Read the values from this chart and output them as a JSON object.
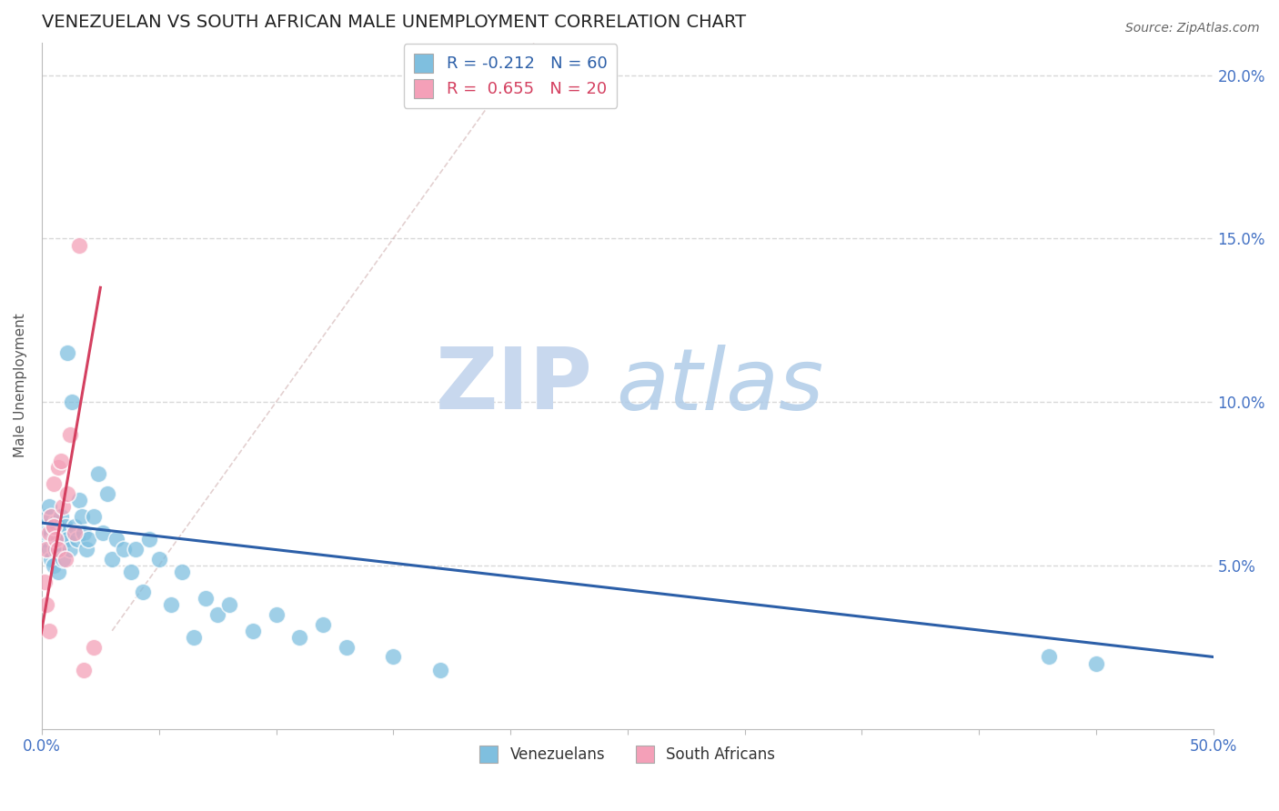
{
  "title": "VENEZUELAN VS SOUTH AFRICAN MALE UNEMPLOYMENT CORRELATION CHART",
  "source": "Source: ZipAtlas.com",
  "ylabel": "Male Unemployment",
  "xlim": [
    0.0,
    0.5
  ],
  "ylim": [
    0.0,
    0.21
  ],
  "xticks": [
    0.0,
    0.05,
    0.1,
    0.15,
    0.2,
    0.25,
    0.3,
    0.35,
    0.4,
    0.45,
    0.5
  ],
  "yticks": [
    0.0,
    0.05,
    0.1,
    0.15,
    0.2
  ],
  "legend_blue_label": "R = -0.212   N = 60",
  "legend_pink_label": "R =  0.655   N = 20",
  "legend_bottom_blue": "Venezuelans",
  "legend_bottom_pink": "South Africans",
  "blue_color": "#7fbfdf",
  "pink_color": "#f4a0b8",
  "blue_line_color": "#2c5fa8",
  "pink_line_color": "#d44060",
  "watermark_zip_color": "#c8d8ee",
  "watermark_atlas_color": "#b0cce8",
  "background_color": "#ffffff",
  "grid_color": "#d8d8d8",
  "venezuelans_x": [
    0.001,
    0.001,
    0.002,
    0.002,
    0.003,
    0.003,
    0.004,
    0.004,
    0.005,
    0.005,
    0.005,
    0.006,
    0.006,
    0.007,
    0.007,
    0.008,
    0.008,
    0.008,
    0.009,
    0.009,
    0.01,
    0.01,
    0.011,
    0.011,
    0.012,
    0.013,
    0.014,
    0.015,
    0.016,
    0.017,
    0.018,
    0.019,
    0.02,
    0.022,
    0.024,
    0.026,
    0.028,
    0.03,
    0.032,
    0.035,
    0.038,
    0.04,
    0.043,
    0.046,
    0.05,
    0.055,
    0.06,
    0.065,
    0.07,
    0.075,
    0.08,
    0.09,
    0.1,
    0.11,
    0.12,
    0.13,
    0.15,
    0.17,
    0.43,
    0.45
  ],
  "venezuelans_y": [
    0.058,
    0.062,
    0.06,
    0.065,
    0.055,
    0.068,
    0.052,
    0.06,
    0.058,
    0.062,
    0.05,
    0.055,
    0.063,
    0.058,
    0.048,
    0.06,
    0.065,
    0.055,
    0.052,
    0.06,
    0.058,
    0.062,
    0.115,
    0.058,
    0.055,
    0.1,
    0.062,
    0.058,
    0.07,
    0.065,
    0.06,
    0.055,
    0.058,
    0.065,
    0.078,
    0.06,
    0.072,
    0.052,
    0.058,
    0.055,
    0.048,
    0.055,
    0.042,
    0.058,
    0.052,
    0.038,
    0.048,
    0.028,
    0.04,
    0.035,
    0.038,
    0.03,
    0.035,
    0.028,
    0.032,
    0.025,
    0.022,
    0.018,
    0.022,
    0.02
  ],
  "southafricans_x": [
    0.001,
    0.002,
    0.002,
    0.003,
    0.003,
    0.004,
    0.005,
    0.005,
    0.006,
    0.007,
    0.007,
    0.008,
    0.009,
    0.01,
    0.011,
    0.012,
    0.014,
    0.016,
    0.018,
    0.022
  ],
  "southafricans_y": [
    0.045,
    0.038,
    0.055,
    0.06,
    0.03,
    0.065,
    0.062,
    0.075,
    0.058,
    0.055,
    0.08,
    0.082,
    0.068,
    0.052,
    0.072,
    0.09,
    0.06,
    0.148,
    0.018,
    0.025
  ],
  "blue_trendline_x": [
    0.0,
    0.5
  ],
  "blue_trendline_y": [
    0.063,
    0.022
  ],
  "pink_trendline_x": [
    -0.002,
    0.025
  ],
  "pink_trendline_y": [
    0.022,
    0.135
  ],
  "diag_line_x": [
    0.03,
    0.21
  ],
  "diag_line_y": [
    0.03,
    0.21
  ]
}
